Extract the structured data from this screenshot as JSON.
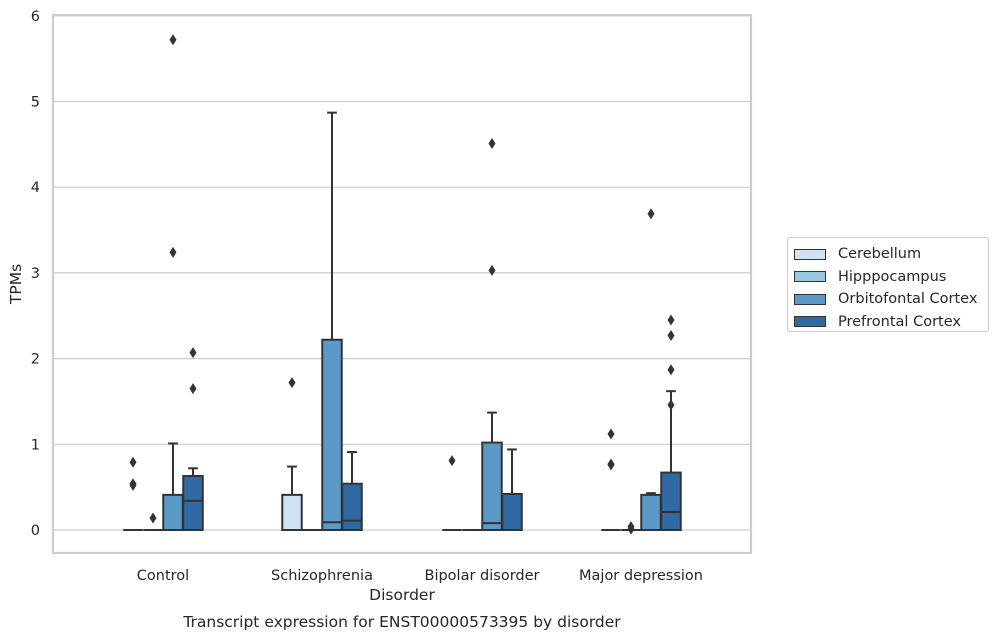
{
  "chart_data": {
    "type": "box",
    "title": "Transcript expression for ENST00000573395 by disorder",
    "xlabel": "Disorder",
    "ylabel": "TPMs",
    "ylim": [
      -0.27,
      6.0
    ],
    "yticks": [
      0,
      1,
      2,
      3,
      4,
      5,
      6
    ],
    "grid": true,
    "legend_position": "right",
    "categories": [
      "Control",
      "Schizophrenia",
      "Bipolar disorder",
      "Major depression"
    ],
    "series": [
      {
        "name": "Cerebellum",
        "color": "#d1e2f2",
        "boxes": [
          {
            "q1": 0,
            "median": 0,
            "q3": 0,
            "whisker_low": 0,
            "whisker_high": 0,
            "outliers": [
              0.79,
              0.54,
              0.52
            ]
          },
          {
            "q1": 0,
            "median": 0,
            "q3": 0.41,
            "whisker_low": 0,
            "whisker_high": 0.74,
            "outliers": [
              1.72
            ]
          },
          {
            "q1": 0,
            "median": 0,
            "q3": 0,
            "whisker_low": 0,
            "whisker_high": 0,
            "outliers": [
              0.81
            ]
          },
          {
            "q1": 0,
            "median": 0,
            "q3": 0,
            "whisker_low": 0,
            "whisker_high": 0,
            "outliers": [
              1.12,
              0.77,
              0.76
            ]
          }
        ]
      },
      {
        "name": "Hipppocampus",
        "color": "#9ac8e0",
        "boxes": [
          {
            "q1": 0,
            "median": 0,
            "q3": 0,
            "whisker_low": 0,
            "whisker_high": 0,
            "outliers": [
              0.14
            ]
          },
          {
            "q1": 0,
            "median": 0,
            "q3": 0,
            "whisker_low": 0,
            "whisker_high": 0,
            "outliers": []
          },
          {
            "q1": 0,
            "median": 0,
            "q3": 0,
            "whisker_low": 0,
            "whisker_high": 0,
            "outliers": []
          },
          {
            "q1": 0,
            "median": 0,
            "q3": 0,
            "whisker_low": 0,
            "whisker_high": 0,
            "outliers": [
              0.04,
              0.01
            ]
          }
        ]
      },
      {
        "name": "Orbitofontal Cortex",
        "color": "#5b9ac7",
        "boxes": [
          {
            "q1": 0,
            "median": 0,
            "q3": 0.41,
            "whisker_low": 0,
            "whisker_high": 1.01,
            "outliers": [
              5.72,
              3.24
            ]
          },
          {
            "q1": 0,
            "median": 0.09,
            "q3": 2.22,
            "whisker_low": 0,
            "whisker_high": 4.87,
            "outliers": []
          },
          {
            "q1": 0,
            "median": 0.08,
            "q3": 1.02,
            "whisker_low": 0,
            "whisker_high": 1.37,
            "outliers": [
              4.51,
              3.03
            ]
          },
          {
            "q1": 0,
            "median": 0,
            "q3": 0.41,
            "whisker_low": 0,
            "whisker_high": 0.43,
            "outliers": [
              3.69
            ]
          }
        ]
      },
      {
        "name": "Prefrontal Cortex",
        "color": "#2f6aa2",
        "boxes": [
          {
            "q1": 0,
            "median": 0.34,
            "q3": 0.63,
            "whisker_low": 0,
            "whisker_high": 0.72,
            "outliers": [
              2.07,
              1.65
            ]
          },
          {
            "q1": 0,
            "median": 0.11,
            "q3": 0.54,
            "whisker_low": 0,
            "whisker_high": 0.91,
            "outliers": []
          },
          {
            "q1": 0,
            "median": 0,
            "q3": 0.42,
            "whisker_low": 0,
            "whisker_high": 0.94,
            "outliers": []
          },
          {
            "q1": 0,
            "median": 0.21,
            "q3": 0.67,
            "whisker_low": 0,
            "whisker_high": 1.62,
            "outliers": [
              2.45,
              2.27,
              1.87,
              1.46
            ]
          }
        ]
      }
    ]
  }
}
